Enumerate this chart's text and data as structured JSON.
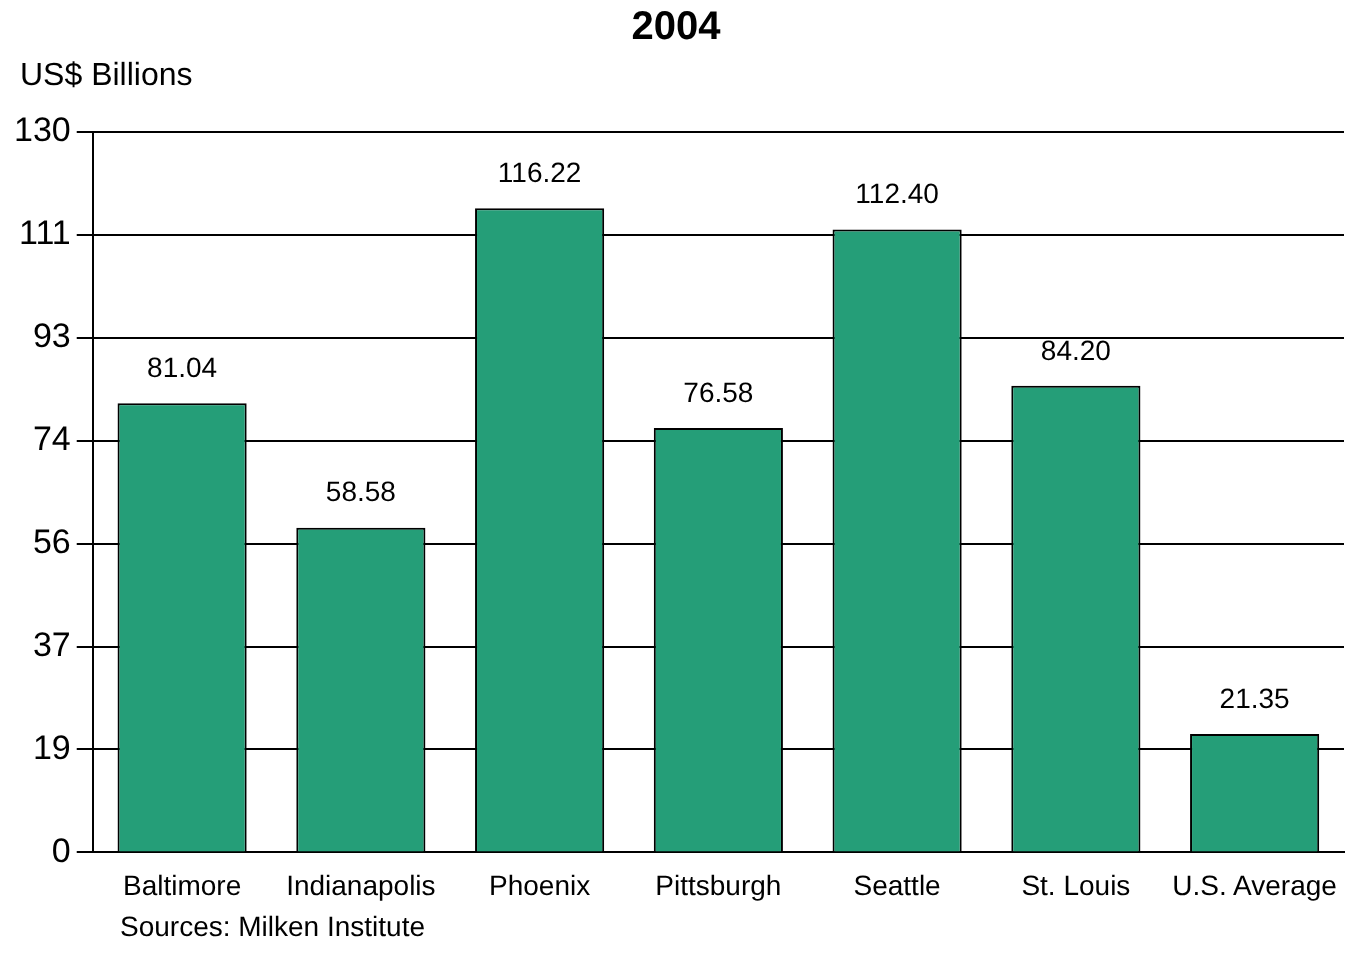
{
  "chart_data": {
    "type": "bar",
    "title": "2004",
    "ylabel": "US$ Billions",
    "categories": [
      "Baltimore",
      "Indianapolis",
      "Phoenix",
      "Pittsburgh",
      "Seattle",
      "St. Louis",
      "U.S. Average"
    ],
    "values": [
      81.04,
      58.58,
      116.22,
      76.58,
      112.4,
      84.2,
      21.35
    ],
    "value_labels": [
      "81.04",
      "58.58",
      "116.22",
      "76.58",
      "112.40",
      "84.20",
      "21.35"
    ],
    "color": "#259e78",
    "ylim": [
      0,
      130
    ],
    "yticks": [
      0,
      {
        "value": 18.57,
        "label": "19"
      },
      {
        "value": 37.14,
        "label": "37"
      },
      {
        "value": 55.71,
        "label": "56"
      },
      {
        "value": 74.29,
        "label": "74"
      },
      {
        "value": 92.86,
        "label": "93"
      },
      {
        "value": 111.43,
        "label": "111"
      },
      130
    ],
    "grid": "y",
    "annotations": [
      "Sources: Milken Institute"
    ]
  }
}
